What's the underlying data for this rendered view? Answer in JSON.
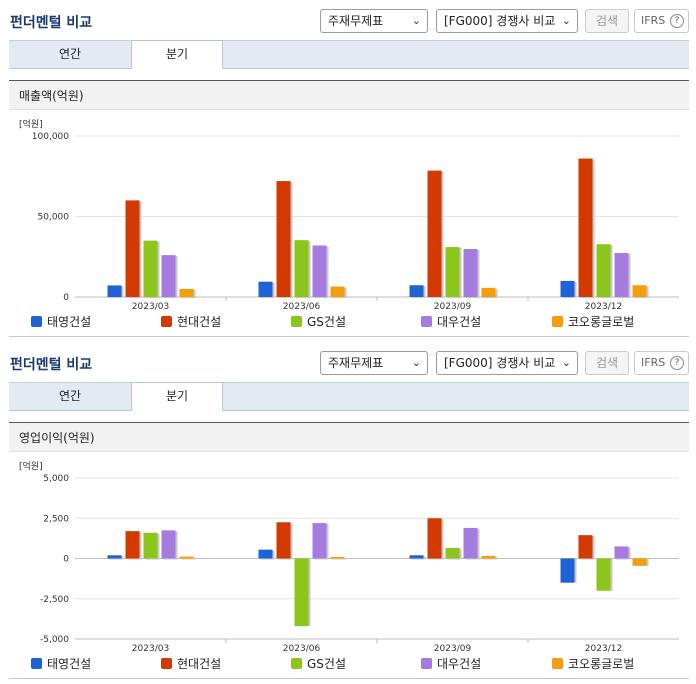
{
  "controls": {
    "title": "펀더멘털 비교",
    "statement_select": "주재무제표",
    "compare_select": "[FG000] 경쟁사 비교",
    "search_button": "검색",
    "ifrs_label": "IFRS",
    "help_glyph": "?",
    "chevron": "⌄",
    "tabs": [
      "연간",
      "분기"
    ],
    "active_tab": "분기"
  },
  "panels": [
    {
      "subtitle": "매출액(억원)",
      "unit": "[억원]",
      "chart_data": {
        "type": "bar",
        "title": "",
        "ylabel": "[억원]",
        "ylim": [
          0,
          100000
        ],
        "ticks": [
          "100,000",
          "50,000",
          "0"
        ],
        "tick_values": [
          100000,
          50000,
          0
        ],
        "categories": [
          "2023/03",
          "2023/06",
          "2023/09",
          "2023/12"
        ],
        "series": [
          {
            "name": "태영건설",
            "color": "#1f62d6",
            "values": [
              7200,
              9500,
              7300,
              10000
            ]
          },
          {
            "name": "현대건설",
            "color": "#d23a00",
            "values": [
              60000,
              72000,
              78500,
              86000
            ]
          },
          {
            "name": "GS건설",
            "color": "#8cc51b",
            "values": [
              35000,
              35300,
              31000,
              32800
            ]
          },
          {
            "name": "대우건설",
            "color": "#a57be0",
            "values": [
              26000,
              32000,
              29800,
              27300
            ]
          },
          {
            "name": "코오롱글로벌",
            "color": "#f59e0b",
            "values": [
              5000,
              6500,
              5700,
              7300
            ]
          }
        ]
      }
    },
    {
      "subtitle": "영업이익(억원)",
      "unit": "[억원]",
      "chart_data": {
        "type": "bar",
        "title": "",
        "ylabel": "[억원]",
        "ylim": [
          -5000,
          5000
        ],
        "ticks": [
          "5,000",
          "2,500",
          "0",
          "-2,500",
          "-5,000"
        ],
        "tick_values": [
          5000,
          2500,
          0,
          -2500,
          -5000
        ],
        "categories": [
          "2023/03",
          "2023/06",
          "2023/09",
          "2023/12"
        ],
        "series": [
          {
            "name": "태영건설",
            "color": "#1f62d6",
            "values": [
              200,
              550,
              200,
              -1500
            ]
          },
          {
            "name": "현대건설",
            "color": "#d23a00",
            "values": [
              1700,
              2250,
              2500,
              1450
            ]
          },
          {
            "name": "GS건설",
            "color": "#8cc51b",
            "values": [
              1600,
              -4200,
              650,
              -2000
            ]
          },
          {
            "name": "대우건설",
            "color": "#a57be0",
            "values": [
              1750,
              2200,
              1900,
              750
            ]
          },
          {
            "name": "코오롱글로벌",
            "color": "#f59e0b",
            "values": [
              120,
              100,
              160,
              -450
            ]
          }
        ]
      }
    }
  ]
}
